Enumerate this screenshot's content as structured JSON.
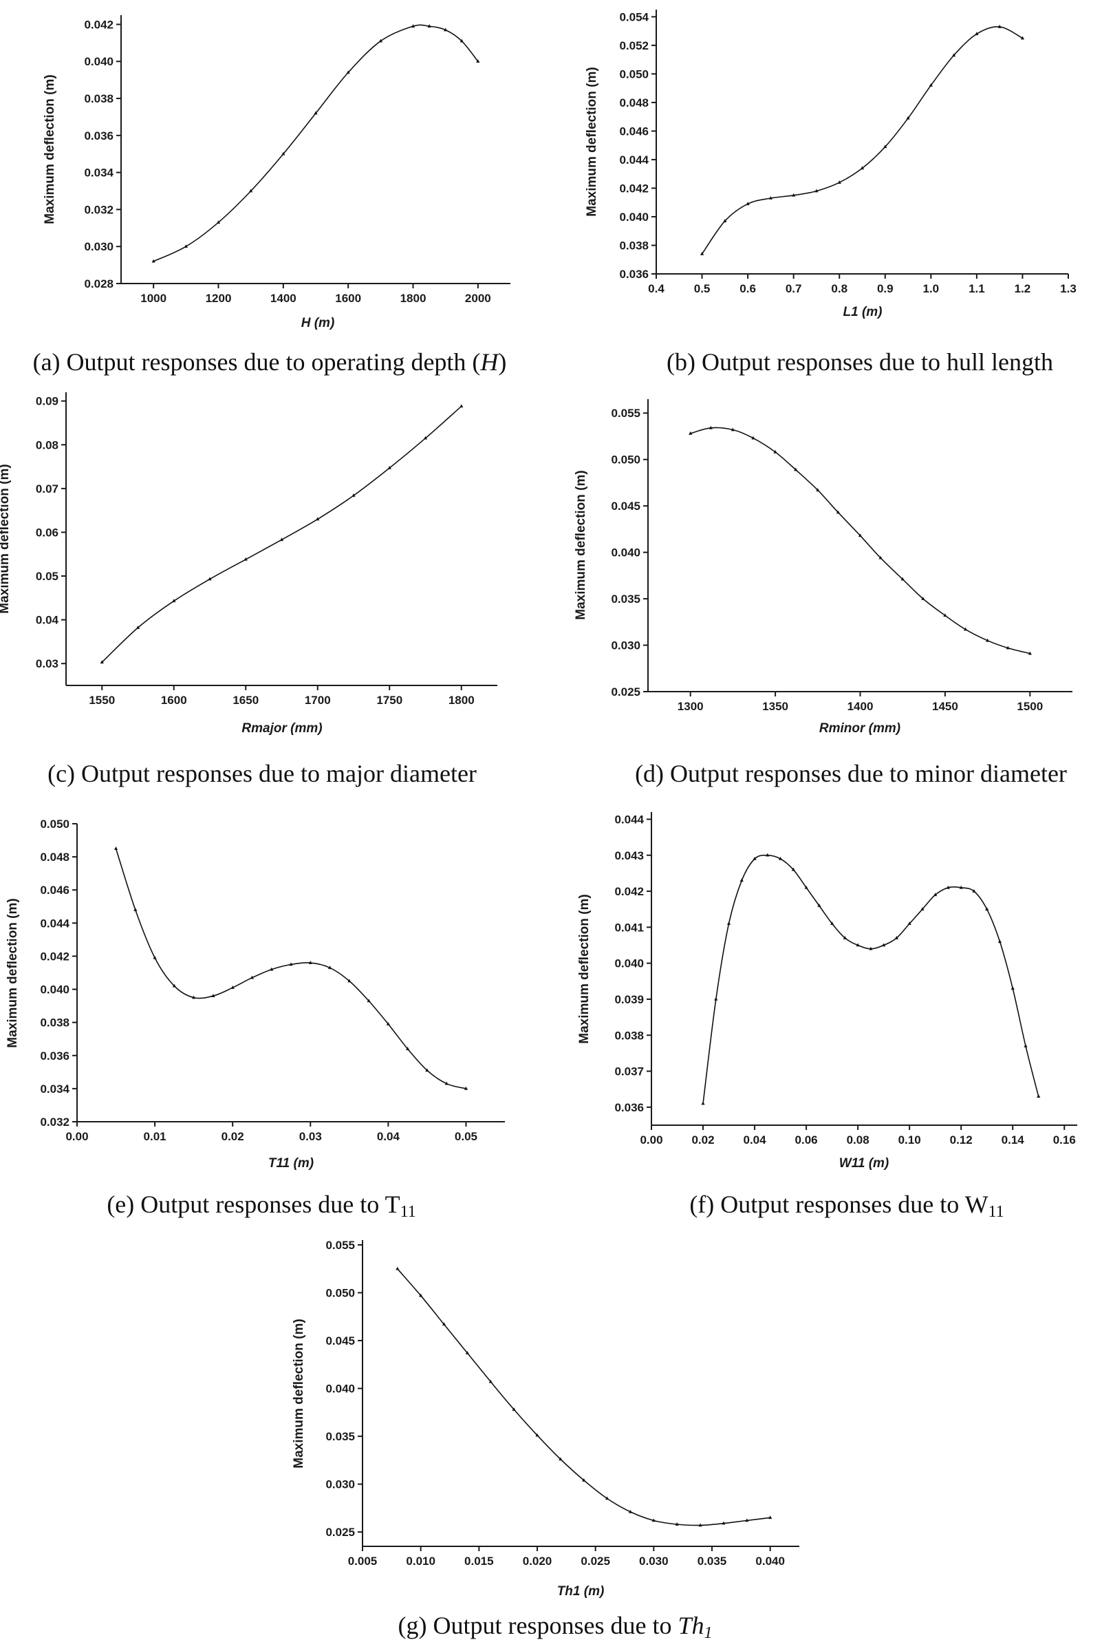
{
  "figure": {
    "panels": [
      {
        "id": "a",
        "caption_parts": [
          {
            "t": "(a) Output responses due to operating depth ("
          },
          {
            "t": "H",
            "i": true
          },
          {
            "t": ")"
          }
        ]
      },
      {
        "id": "b",
        "caption_parts": [
          {
            "t": "(b) Output responses due to hull length"
          }
        ]
      },
      {
        "id": "c",
        "caption_parts": [
          {
            "t": "(c) Output responses due to major diameter"
          }
        ]
      },
      {
        "id": "d",
        "caption_parts": [
          {
            "t": "(d) Output responses due to minor diameter"
          }
        ]
      },
      {
        "id": "e",
        "caption_parts": [
          {
            "t": "(e) Output responses due to T"
          },
          {
            "t": "11",
            "sub": true
          }
        ]
      },
      {
        "id": "f",
        "caption_parts": [
          {
            "t": "(f)  Output responses due to W"
          },
          {
            "t": "11",
            "sub": true
          }
        ]
      },
      {
        "id": "g",
        "caption_parts": [
          {
            "t": "(g) Output responses due to "
          },
          {
            "t": "Th",
            "i": true
          },
          {
            "t": "1",
            "i": true,
            "sub": true
          }
        ]
      }
    ]
  },
  "chart_data": [
    {
      "id": "a",
      "type": "line",
      "title": "",
      "xlabel": "H (m)",
      "ylabel": "Maximum deflection (m)",
      "xlim": [
        900,
        2100
      ],
      "ylim": [
        0.028,
        0.0425
      ],
      "xticks": [
        1000,
        1200,
        1400,
        1600,
        1800,
        2000
      ],
      "xtick_labels": [
        "1000",
        "1200",
        "1400",
        "1600",
        "1800",
        "2000"
      ],
      "yticks": [
        0.028,
        0.03,
        0.032,
        0.034,
        0.036,
        0.038,
        0.04,
        0.042
      ],
      "ytick_labels": [
        "0.028",
        "0.030",
        "0.032",
        "0.034",
        "0.036",
        "0.038",
        "0.040",
        "0.042"
      ],
      "x": [
        1000,
        1100,
        1200,
        1300,
        1400,
        1500,
        1600,
        1700,
        1800,
        1850,
        1900,
        1950,
        2000
      ],
      "y": [
        0.0292,
        0.03,
        0.0313,
        0.033,
        0.035,
        0.0372,
        0.0394,
        0.0411,
        0.0419,
        0.0419,
        0.0417,
        0.0411,
        0.04
      ]
    },
    {
      "id": "b",
      "type": "line",
      "title": "",
      "xlabel": "L1 (m)",
      "ylabel": "Maximum deflection (m)",
      "xlim": [
        0.4,
        1.3
      ],
      "ylim": [
        0.036,
        0.0545
      ],
      "xticks": [
        0.4,
        0.5,
        0.6,
        0.7,
        0.8,
        0.9,
        1.0,
        1.1,
        1.2,
        1.3
      ],
      "xtick_labels": [
        "0.4",
        "0.5",
        "0.6",
        "0.7",
        "0.8",
        "0.9",
        "1.0",
        "1.1",
        "1.2",
        "1.3"
      ],
      "yticks": [
        0.036,
        0.038,
        0.04,
        0.042,
        0.044,
        0.046,
        0.048,
        0.05,
        0.052,
        0.054
      ],
      "ytick_labels": [
        "0.036",
        "0.038",
        "0.040",
        "0.042",
        "0.044",
        "0.046",
        "0.048",
        "0.050",
        "0.052",
        "0.054"
      ],
      "x": [
        0.5,
        0.55,
        0.6,
        0.65,
        0.7,
        0.75,
        0.8,
        0.85,
        0.9,
        0.95,
        1.0,
        1.05,
        1.1,
        1.15,
        1.2
      ],
      "y": [
        0.0374,
        0.0397,
        0.0409,
        0.0413,
        0.0415,
        0.0418,
        0.0424,
        0.0434,
        0.0449,
        0.0469,
        0.0492,
        0.0513,
        0.0528,
        0.0533,
        0.0525
      ]
    },
    {
      "id": "c",
      "type": "line",
      "title": "",
      "xlabel": "Rmajor (mm)",
      "ylabel": "Maximum deflection (m)",
      "xlim": [
        1525,
        1825
      ],
      "ylim": [
        0.025,
        0.092
      ],
      "xticks": [
        1550,
        1600,
        1650,
        1700,
        1750,
        1800
      ],
      "xtick_labels": [
        "1550",
        "1600",
        "1650",
        "1700",
        "1750",
        "1800"
      ],
      "yticks": [
        0.03,
        0.04,
        0.05,
        0.06,
        0.07,
        0.08,
        0.09
      ],
      "ytick_labels": [
        "0.03",
        "0.04",
        "0.05",
        "0.06",
        "0.07",
        "0.08",
        "0.09"
      ],
      "x": [
        1550,
        1575,
        1600,
        1625,
        1650,
        1675,
        1700,
        1725,
        1750,
        1775,
        1800
      ],
      "y": [
        0.0303,
        0.0382,
        0.0443,
        0.0493,
        0.0538,
        0.0583,
        0.063,
        0.0684,
        0.0747,
        0.0815,
        0.0888
      ]
    },
    {
      "id": "d",
      "type": "line",
      "title": "",
      "xlabel": "Rminor (mm)",
      "ylabel": "Maximum deflection (m)",
      "xlim": [
        1275,
        1525
      ],
      "ylim": [
        0.025,
        0.0565
      ],
      "xticks": [
        1300,
        1350,
        1400,
        1450,
        1500
      ],
      "xtick_labels": [
        "1300",
        "1350",
        "1400",
        "1450",
        "1500"
      ],
      "yticks": [
        0.025,
        0.03,
        0.035,
        0.04,
        0.045,
        0.05,
        0.055
      ],
      "ytick_labels": [
        "0.025",
        "0.030",
        "0.035",
        "0.040",
        "0.045",
        "0.050",
        "0.055"
      ],
      "x": [
        1300,
        1312,
        1325,
        1337,
        1350,
        1362,
        1375,
        1387,
        1400,
        1412,
        1425,
        1437,
        1450,
        1462,
        1475,
        1487,
        1500
      ],
      "y": [
        0.0528,
        0.0534,
        0.0532,
        0.0523,
        0.0508,
        0.0489,
        0.0467,
        0.0443,
        0.0418,
        0.0394,
        0.0371,
        0.035,
        0.0332,
        0.0317,
        0.0305,
        0.0297,
        0.0291
      ]
    },
    {
      "id": "e",
      "type": "line",
      "title": "",
      "xlabel": "T11 (m)",
      "ylabel": "Maximum deflection (m)",
      "xlim": [
        0.0,
        0.055
      ],
      "ylim": [
        0.032,
        0.05
      ],
      "xticks": [
        0.0,
        0.01,
        0.02,
        0.03,
        0.04,
        0.05
      ],
      "xtick_labels": [
        "0.00",
        "0.01",
        "0.02",
        "0.03",
        "0.04",
        "0.05"
      ],
      "yticks": [
        0.032,
        0.034,
        0.036,
        0.038,
        0.04,
        0.042,
        0.044,
        0.046,
        0.048,
        0.05
      ],
      "ytick_labels": [
        "0.032",
        "0.034",
        "0.036",
        "0.038",
        "0.040",
        "0.042",
        "0.044",
        "0.046",
        "0.048",
        "0.050"
      ],
      "x": [
        0.005,
        0.0075,
        0.01,
        0.0125,
        0.015,
        0.0175,
        0.02,
        0.0225,
        0.025,
        0.0275,
        0.03,
        0.0325,
        0.035,
        0.0375,
        0.04,
        0.0425,
        0.045,
        0.0475,
        0.05
      ],
      "y": [
        0.0485,
        0.0448,
        0.0419,
        0.0402,
        0.0395,
        0.0396,
        0.0401,
        0.0407,
        0.0412,
        0.0415,
        0.0416,
        0.0413,
        0.0405,
        0.0393,
        0.0379,
        0.0364,
        0.0351,
        0.0343,
        0.034
      ]
    },
    {
      "id": "f",
      "type": "line",
      "title": "",
      "xlabel": "W11 (m)",
      "ylabel": "Maximum deflection (m)",
      "xlim": [
        0.0,
        0.165
      ],
      "ylim": [
        0.0355,
        0.0442
      ],
      "xticks": [
        0.0,
        0.02,
        0.04,
        0.06,
        0.08,
        0.1,
        0.12,
        0.14,
        0.16
      ],
      "xtick_labels": [
        "0.00",
        "0.02",
        "0.04",
        "0.06",
        "0.08",
        "0.10",
        "0.12",
        "0.14",
        "0.16"
      ],
      "yticks": [
        0.036,
        0.037,
        0.038,
        0.039,
        0.04,
        0.041,
        0.042,
        0.043,
        0.044
      ],
      "ytick_labels": [
        "0.036",
        "0.037",
        "0.038",
        "0.039",
        "0.040",
        "0.041",
        "0.042",
        "0.043",
        "0.044"
      ],
      "x": [
        0.02,
        0.025,
        0.03,
        0.035,
        0.04,
        0.045,
        0.05,
        0.055,
        0.06,
        0.065,
        0.07,
        0.075,
        0.08,
        0.085,
        0.09,
        0.095,
        0.1,
        0.105,
        0.11,
        0.115,
        0.12,
        0.125,
        0.13,
        0.135,
        0.14,
        0.145,
        0.15
      ],
      "y": [
        0.0361,
        0.039,
        0.0411,
        0.0423,
        0.0429,
        0.043,
        0.0429,
        0.0426,
        0.0421,
        0.0416,
        0.0411,
        0.0407,
        0.0405,
        0.0404,
        0.0405,
        0.0407,
        0.0411,
        0.0415,
        0.0419,
        0.0421,
        0.0421,
        0.042,
        0.0415,
        0.0406,
        0.0393,
        0.0377,
        0.0363
      ]
    },
    {
      "id": "g",
      "type": "line",
      "title": "",
      "xlabel": "Th1 (m)",
      "ylabel": "Maximum deflection (m)",
      "xlim": [
        0.005,
        0.0425
      ],
      "ylim": [
        0.0235,
        0.0555
      ],
      "xticks": [
        0.005,
        0.01,
        0.015,
        0.02,
        0.025,
        0.03,
        0.035,
        0.04
      ],
      "xtick_labels": [
        "0.005",
        "0.010",
        "0.015",
        "0.020",
        "0.025",
        "0.030",
        "0.035",
        "0.040"
      ],
      "yticks": [
        0.025,
        0.03,
        0.035,
        0.04,
        0.045,
        0.05,
        0.055
      ],
      "ytick_labels": [
        "0.025",
        "0.030",
        "0.035",
        "0.040",
        "0.045",
        "0.050",
        "0.055"
      ],
      "x": [
        0.008,
        0.01,
        0.012,
        0.014,
        0.016,
        0.018,
        0.02,
        0.022,
        0.024,
        0.026,
        0.028,
        0.03,
        0.032,
        0.034,
        0.036,
        0.038,
        0.04
      ],
      "y": [
        0.0525,
        0.0497,
        0.0467,
        0.0437,
        0.0407,
        0.0378,
        0.0351,
        0.0326,
        0.0304,
        0.0285,
        0.0271,
        0.0262,
        0.0258,
        0.0257,
        0.0259,
        0.0262,
        0.0265
      ]
    }
  ]
}
